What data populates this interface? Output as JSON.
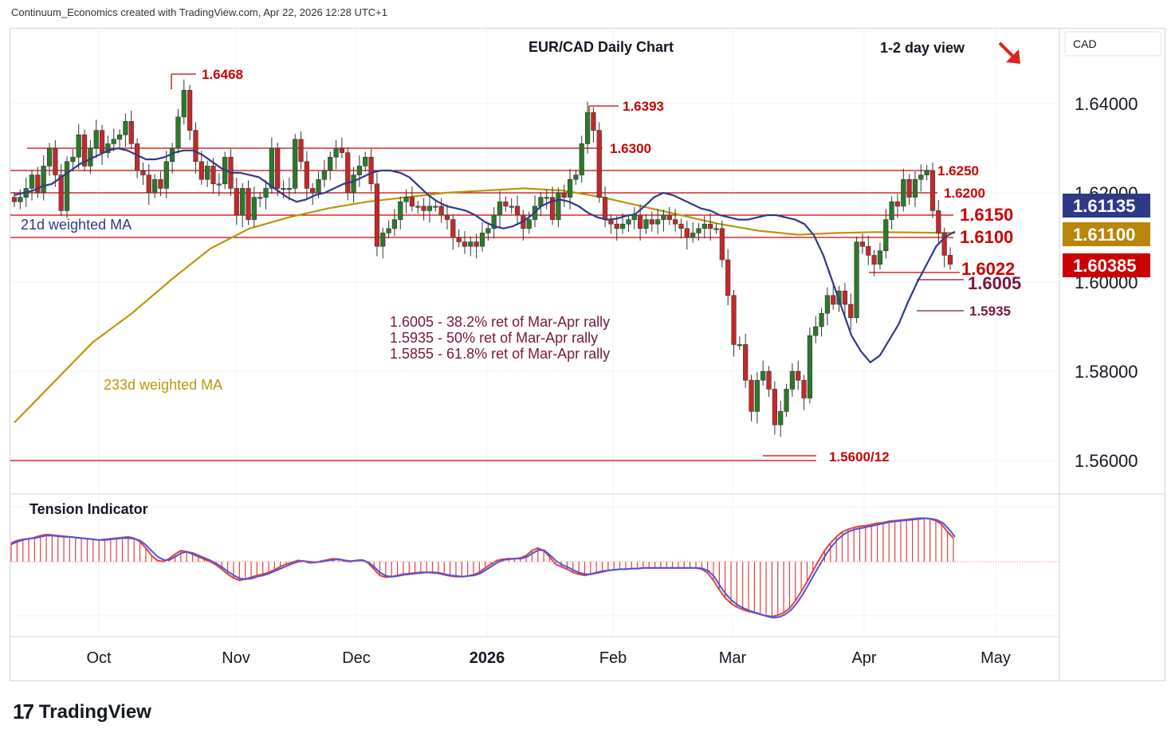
{
  "header": {
    "attribution": "Continuum_Economics created with TradingView.com, Apr 22, 2026 12:28 UTC+1"
  },
  "footer": {
    "brand": "TradingView",
    "brand_mark": "17"
  },
  "chart_data": {
    "type": "candlestick",
    "title": "EUR/CAD Daily Chart",
    "view_label": "1-2 day view",
    "view_arrow": "down-right",
    "currency": "CAD",
    "y_axis": {
      "ticks": [
        "1.64000",
        "1.62000",
        "1.60000",
        "1.58000",
        "1.56000"
      ],
      "ylim": [
        1.5515,
        1.655
      ]
    },
    "x_axis": {
      "ticks": [
        "Oct",
        "Nov",
        "Dec",
        "2026",
        "Feb",
        "Mar",
        "Apr",
        "May"
      ]
    },
    "price_badges": [
      {
        "label": "1.61135",
        "color": "#2e3a87",
        "value": 1.61135
      },
      {
        "label": "1.61100",
        "color": "#b8860b",
        "value": 1.611
      },
      {
        "label": "1.60385",
        "color": "#cc0000",
        "value": 1.60385
      }
    ],
    "levels": [
      {
        "label": "1.6468",
        "value": 1.6468
      },
      {
        "label": "1.6393",
        "value": 1.6393
      },
      {
        "label": "1.6300",
        "value": 1.63
      },
      {
        "label": "1.6250",
        "value": 1.625
      },
      {
        "label": "1.6200",
        "value": 1.62
      },
      {
        "label": "1.6150",
        "value": 1.615
      },
      {
        "label": "1.6100",
        "value": 1.61
      },
      {
        "label": "1.6022",
        "value": 1.6022
      },
      {
        "label": "1.6005",
        "value": 1.6005
      },
      {
        "label": "1.5935",
        "value": 1.5935
      },
      {
        "label": "1.5600/12",
        "value": 1.5612
      }
    ],
    "annotations": [
      "1.6005 - 38.2% ret of Mar-Apr rally",
      "1.5935 - 50% ret of Mar-Apr rally",
      "1.5855 - 61.8% ret of Mar-Apr rally"
    ],
    "ma_labels": {
      "ma21": "21d weighted MA",
      "ma233": "233d weighted MA"
    },
    "ma_colors": {
      "ma21": "#2e3a87",
      "ma233": "#b8960b"
    },
    "closes": [
      1.618,
      1.619,
      1.621,
      1.624,
      1.62,
      1.626,
      1.63,
      1.624,
      1.616,
      1.627,
      1.628,
      1.633,
      1.626,
      1.63,
      1.634,
      1.629,
      1.631,
      1.632,
      1.633,
      1.636,
      1.631,
      1.625,
      1.624,
      1.62,
      1.623,
      1.621,
      1.627,
      1.63,
      1.637,
      1.643,
      1.634,
      1.627,
      1.623,
      1.626,
      1.622,
      1.622,
      1.628,
      1.621,
      1.615,
      1.621,
      1.614,
      1.619,
      1.619,
      1.621,
      1.63,
      1.621,
      1.621,
      1.621,
      1.632,
      1.627,
      1.621,
      1.62,
      1.623,
      1.625,
      1.628,
      1.63,
      1.629,
      1.62,
      1.624,
      1.626,
      1.628,
      1.622,
      1.608,
      1.611,
      1.612,
      1.614,
      1.618,
      1.619,
      1.617,
      1.617,
      1.616,
      1.617,
      1.617,
      1.615,
      1.614,
      1.61,
      1.609,
      1.608,
      1.609,
      1.608,
      1.611,
      1.612,
      1.615,
      1.618,
      1.617,
      1.617,
      1.615,
      1.612,
      1.614,
      1.617,
      1.619,
      1.619,
      1.614,
      1.62,
      1.619,
      1.623,
      1.624,
      1.631,
      1.638,
      1.634,
      1.619,
      1.614,
      1.613,
      1.612,
      1.613,
      1.614,
      1.615,
      1.612,
      1.614,
      1.613,
      1.614,
      1.615,
      1.614,
      1.613,
      1.612,
      1.61,
      1.611,
      1.612,
      1.613,
      1.612,
      1.612,
      1.605,
      1.597,
      1.586,
      1.586,
      1.578,
      1.571,
      1.578,
      1.58,
      1.576,
      1.568,
      1.571,
      1.576,
      1.58,
      1.578,
      1.574,
      1.588,
      1.59,
      1.593,
      1.597,
      1.595,
      1.598,
      1.595,
      1.592,
      1.609,
      1.608,
      1.606,
      1.604,
      1.607,
      1.614,
      1.618,
      1.617,
      1.623,
      1.619,
      1.623,
      1.624,
      1.625,
      1.616,
      1.611,
      1.606,
      1.604
    ],
    "ma21_values": [
      1.6195,
      1.62,
      1.6205,
      1.6215,
      1.622,
      1.6235,
      1.625,
      1.6265,
      1.6275,
      1.6285,
      1.6295,
      1.63,
      1.6295,
      1.6285,
      1.6275,
      1.6275,
      1.628,
      1.629,
      1.6295,
      1.6295,
      1.6285,
      1.627,
      1.6255,
      1.6245,
      1.6245,
      1.624,
      1.6235,
      1.622,
      1.6205,
      1.619,
      1.618,
      1.6185,
      1.6195,
      1.62,
      1.621,
      1.622,
      1.6225,
      1.6235,
      1.6245,
      1.625,
      1.625,
      1.6245,
      1.6235,
      1.6215,
      1.6195,
      1.618,
      1.617,
      1.6165,
      1.616,
      1.615,
      1.6135,
      1.6125,
      1.612,
      1.6125,
      1.6135,
      1.615,
      1.617,
      1.618,
      1.6185,
      1.618,
      1.617,
      1.6155,
      1.6145,
      1.614,
      1.6142,
      1.6148,
      1.6152,
      1.617,
      1.619,
      1.62,
      1.6195,
      1.6185,
      1.6175,
      1.6165,
      1.616,
      1.615,
      1.6145,
      1.614,
      1.614,
      1.6145,
      1.615,
      1.615,
      1.6145,
      1.614,
      1.613,
      1.6105,
      1.606,
      1.6,
      1.594,
      1.588,
      1.5845,
      1.582,
      1.5835,
      1.587,
      1.5905,
      1.5955,
      1.6,
      1.604,
      1.608,
      1.6102,
      1.6113
    ],
    "ma233_values": [
      1.5685,
      1.5775,
      1.5865,
      1.593,
      1.6005,
      1.6075,
      1.612,
      1.6145,
      1.6165,
      1.618,
      1.619,
      1.62,
      1.6205,
      1.621,
      1.6205,
      1.619,
      1.617,
      1.615,
      1.613,
      1.6115,
      1.6106,
      1.611,
      1.6112,
      1.6111,
      1.611
    ],
    "tension_indicator": {
      "label": "Tension Indicator",
      "ylim": [
        -0.9,
        0.75
      ],
      "values": [
        0.3,
        0.34,
        0.36,
        0.37,
        0.39,
        0.42,
        0.44,
        0.43,
        0.42,
        0.41,
        0.4,
        0.39,
        0.38,
        0.37,
        0.36,
        0.35,
        0.36,
        0.37,
        0.38,
        0.39,
        0.4,
        0.38,
        0.32,
        0.22,
        0.1,
        0.02,
        0.0,
        0.05,
        0.12,
        0.18,
        0.16,
        0.12,
        0.08,
        0.04,
        0.0,
        -0.05,
        -0.12,
        -0.2,
        -0.26,
        -0.3,
        -0.28,
        -0.25,
        -0.22,
        -0.2,
        -0.17,
        -0.13,
        -0.08,
        -0.04,
        -0.01,
        0.02,
        0.01,
        -0.02,
        -0.01,
        0.01,
        0.03,
        0.05,
        0.04,
        0.01,
        0.0,
        0.02,
        0.03,
        -0.02,
        -0.12,
        -0.22,
        -0.25,
        -0.24,
        -0.22,
        -0.2,
        -0.19,
        -0.18,
        -0.17,
        -0.17,
        -0.18,
        -0.19,
        -0.21,
        -0.23,
        -0.24,
        -0.24,
        -0.23,
        -0.21,
        -0.17,
        -0.1,
        -0.04,
        0.02,
        0.04,
        0.05,
        0.05,
        0.06,
        0.1,
        0.18,
        0.22,
        0.18,
        0.08,
        -0.04,
        -0.08,
        -0.12,
        -0.17,
        -0.2,
        -0.22,
        -0.2,
        -0.17,
        -0.15,
        -0.14,
        -0.13,
        -0.12,
        -0.12,
        -0.11,
        -0.11,
        -0.1,
        -0.1,
        -0.1,
        -0.1,
        -0.1,
        -0.1,
        -0.1,
        -0.1,
        -0.1,
        -0.1,
        -0.12,
        -0.18,
        -0.3,
        -0.45,
        -0.58,
        -0.67,
        -0.73,
        -0.77,
        -0.8,
        -0.82,
        -0.85,
        -0.87,
        -0.88,
        -0.86,
        -0.82,
        -0.75,
        -0.63,
        -0.48,
        -0.32,
        -0.15,
        0.02,
        0.18,
        0.3,
        0.4,
        0.48,
        0.52,
        0.55,
        0.57,
        0.58,
        0.6,
        0.62,
        0.63,
        0.65,
        0.66,
        0.67,
        0.68,
        0.69,
        0.7,
        0.7,
        0.69,
        0.66,
        0.6,
        0.48,
        0.38
      ],
      "signal_values": [
        0.28,
        0.32,
        0.35,
        0.37,
        0.38,
        0.4,
        0.42,
        0.42,
        0.41,
        0.4,
        0.4,
        0.39,
        0.38,
        0.37,
        0.36,
        0.35,
        0.35,
        0.36,
        0.37,
        0.38,
        0.38,
        0.37,
        0.34,
        0.27,
        0.17,
        0.08,
        0.03,
        0.03,
        0.08,
        0.14,
        0.16,
        0.14,
        0.1,
        0.06,
        0.02,
        -0.03,
        -0.09,
        -0.16,
        -0.22,
        -0.27,
        -0.28,
        -0.27,
        -0.24,
        -0.22,
        -0.19,
        -0.15,
        -0.11,
        -0.07,
        -0.03,
        0.0,
        0.01,
        0.0,
        -0.01,
        0.0,
        0.02,
        0.03,
        0.04,
        0.02,
        0.01,
        0.02,
        0.02,
        -0.01,
        -0.09,
        -0.18,
        -0.23,
        -0.24,
        -0.23,
        -0.21,
        -0.2,
        -0.19,
        -0.18,
        -0.17,
        -0.17,
        -0.18,
        -0.2,
        -0.22,
        -0.23,
        -0.24,
        -0.23,
        -0.22,
        -0.19,
        -0.13,
        -0.07,
        -0.01,
        0.03,
        0.04,
        0.05,
        0.05,
        0.08,
        0.14,
        0.19,
        0.18,
        0.1,
        0.01,
        -0.05,
        -0.09,
        -0.14,
        -0.18,
        -0.2,
        -0.2,
        -0.18,
        -0.16,
        -0.14,
        -0.13,
        -0.12,
        -0.12,
        -0.11,
        -0.11,
        -0.1,
        -0.1,
        -0.1,
        -0.1,
        -0.1,
        -0.1,
        -0.1,
        -0.1,
        -0.1,
        -0.1,
        -0.11,
        -0.15,
        -0.25,
        -0.4,
        -0.53,
        -0.63,
        -0.7,
        -0.75,
        -0.79,
        -0.82,
        -0.85,
        -0.88,
        -0.9,
        -0.89,
        -0.85,
        -0.78,
        -0.67,
        -0.53,
        -0.37,
        -0.2,
        -0.04,
        0.12,
        0.25,
        0.36,
        0.44,
        0.49,
        0.52,
        0.54,
        0.56,
        0.58,
        0.6,
        0.62,
        0.64,
        0.65,
        0.66,
        0.67,
        0.68,
        0.69,
        0.7,
        0.69,
        0.67,
        0.62,
        0.52,
        0.4
      ]
    }
  }
}
